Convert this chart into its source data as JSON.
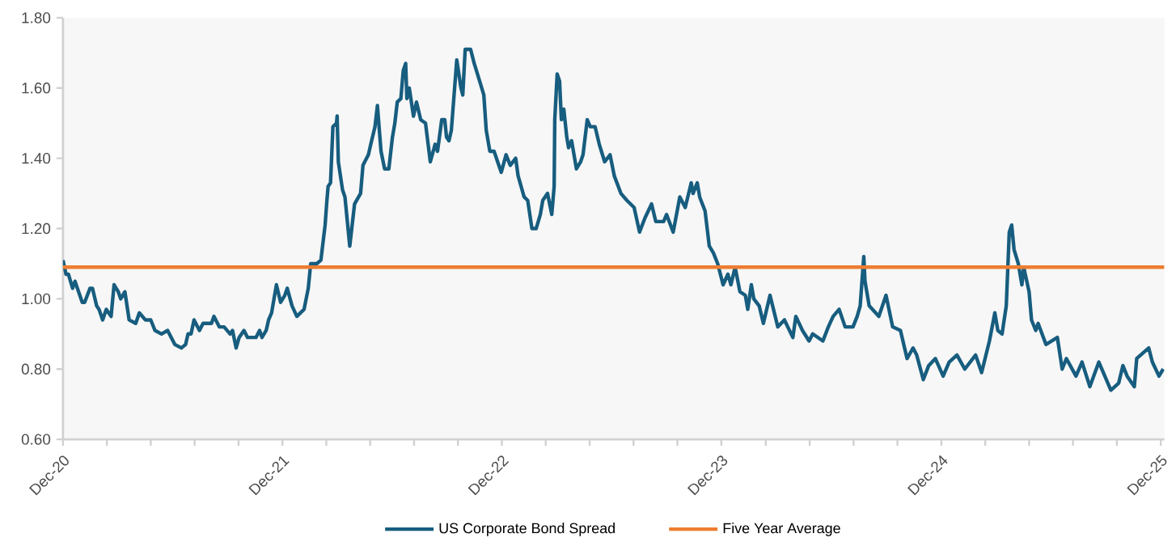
{
  "chart_data": {
    "type": "line",
    "xlim": [
      "2020-12-18",
      "2025-12-24"
    ],
    "ylim": [
      0.6,
      1.8
    ],
    "yticks": [
      {
        "value": 0.6,
        "label": "0.60"
      },
      {
        "value": 0.8,
        "label": "0.80"
      },
      {
        "value": 1.0,
        "label": "1.00"
      },
      {
        "value": 1.2,
        "label": "1.20"
      },
      {
        "value": 1.4,
        "label": "1.40"
      },
      {
        "value": 1.6,
        "label": "1.60"
      },
      {
        "value": 1.8,
        "label": "1.80"
      }
    ],
    "xticks": [
      {
        "value": "2020-12-18",
        "label": "Dec-20"
      },
      {
        "value": "2021-03-01",
        "label": null
      },
      {
        "value": "2021-05-13",
        "label": null
      },
      {
        "value": "2021-07-25",
        "label": null
      },
      {
        "value": "2021-10-06",
        "label": null
      },
      {
        "value": "2021-12-18",
        "label": "Dec-21"
      },
      {
        "value": "2022-03-01",
        "label": null
      },
      {
        "value": "2022-05-13",
        "label": null
      },
      {
        "value": "2022-07-25",
        "label": null
      },
      {
        "value": "2022-10-06",
        "label": null
      },
      {
        "value": "2022-12-18",
        "label": "Dec-22"
      },
      {
        "value": "2023-03-01",
        "label": null
      },
      {
        "value": "2023-05-13",
        "label": null
      },
      {
        "value": "2023-07-25",
        "label": null
      },
      {
        "value": "2023-10-06",
        "label": null
      },
      {
        "value": "2023-12-18",
        "label": "Dec-23"
      },
      {
        "value": "2024-03-01",
        "label": null
      },
      {
        "value": "2024-05-13",
        "label": null
      },
      {
        "value": "2024-07-25",
        "label": null
      },
      {
        "value": "2024-10-06",
        "label": null
      },
      {
        "value": "2024-12-18",
        "label": "Dec-24"
      },
      {
        "value": "2025-03-01",
        "label": null
      },
      {
        "value": "2025-05-13",
        "label": null
      },
      {
        "value": "2025-07-25",
        "label": null
      },
      {
        "value": "2025-10-06",
        "label": null
      },
      {
        "value": "2025-12-18",
        "label": "Dec-25"
      }
    ],
    "legend": "bottom",
    "ref_lines": [
      {
        "axis": "y",
        "value": 1.09,
        "label": "Five Year Average",
        "color": "#ed7d31"
      }
    ],
    "series": [
      {
        "name": "US Corporate Bond Spread",
        "color": "#175d7f",
        "x": [
          "2020-12-18",
          "2020-12-23",
          "2020-12-27",
          "2021-01-03",
          "2021-01-07",
          "2021-01-19",
          "2021-01-23",
          "2021-02-01",
          "2021-02-05",
          "2021-02-12",
          "2021-02-16",
          "2021-02-22",
          "2021-02-28",
          "2021-03-08",
          "2021-03-13",
          "2021-03-20",
          "2021-03-24",
          "2021-03-31",
          "2021-04-07",
          "2021-04-18",
          "2021-04-24",
          "2021-05-04",
          "2021-05-13",
          "2021-05-20",
          "2021-05-31",
          "2021-06-10",
          "2021-06-22",
          "2021-07-03",
          "2021-07-10",
          "2021-07-14",
          "2021-07-19",
          "2021-07-24",
          "2021-08-02",
          "2021-08-08",
          "2021-08-22",
          "2021-08-26",
          "2021-09-04",
          "2021-09-12",
          "2021-09-22",
          "2021-09-26",
          "2021-10-02",
          "2021-10-07",
          "2021-10-15",
          "2021-10-21",
          "2021-11-04",
          "2021-11-10",
          "2021-11-14",
          "2021-11-21",
          "2021-11-25",
          "2021-11-30",
          "2021-12-08",
          "2021-12-15",
          "2021-12-22",
          "2021-12-26",
          "2022-01-03",
          "2022-01-11",
          "2022-01-23",
          "2022-01-30",
          "2022-02-03",
          "2022-02-13",
          "2022-02-20",
          "2022-02-27",
          "2022-03-02",
          "2022-03-04",
          "2022-03-08",
          "2022-03-12",
          "2022-03-18",
          "2022-03-19",
          "2022-03-21",
          "2022-03-28",
          "2022-04-01",
          "2022-04-09",
          "2022-04-17",
          "2022-04-27",
          "2022-05-01",
          "2022-05-10",
          "2022-05-14",
          "2022-05-21",
          "2022-05-25",
          "2022-05-31",
          "2022-06-06",
          "2022-06-13",
          "2022-06-19",
          "2022-06-23",
          "2022-06-27",
          "2022-07-03",
          "2022-07-07",
          "2022-07-11",
          "2022-07-13",
          "2022-07-17",
          "2022-07-24",
          "2022-07-29",
          "2022-08-05",
          "2022-08-13",
          "2022-08-21",
          "2022-08-29",
          "2022-09-02",
          "2022-09-09",
          "2022-09-14",
          "2022-09-17",
          "2022-09-21",
          "2022-09-25",
          "2022-10-04",
          "2022-10-11",
          "2022-10-14",
          "2022-10-18",
          "2022-10-27",
          "2022-11-02",
          "2022-11-11",
          "2022-11-18",
          "2022-11-22",
          "2022-11-28",
          "2022-12-05",
          "2022-12-17",
          "2022-12-25",
          "2023-01-01",
          "2023-01-10",
          "2023-01-14",
          "2023-01-24",
          "2023-01-30",
          "2023-02-06",
          "2023-02-13",
          "2023-02-20",
          "2023-02-24",
          "2023-03-04",
          "2023-03-11",
          "2023-03-15",
          "2023-03-16",
          "2023-03-20",
          "2023-03-24",
          "2023-03-27",
          "2023-03-31",
          "2023-04-05",
          "2023-04-08",
          "2023-04-13",
          "2023-04-21",
          "2023-04-28",
          "2023-05-02",
          "2023-05-09",
          "2023-05-14",
          "2023-05-22",
          "2023-05-29",
          "2023-06-07",
          "2023-06-16",
          "2023-06-23",
          "2023-07-04",
          "2023-07-14",
          "2023-07-26",
          "2023-08-04",
          "2023-08-13",
          "2023-08-24",
          "2023-08-31",
          "2023-09-13",
          "2023-09-18",
          "2023-09-29",
          "2023-10-10",
          "2023-10-19",
          "2023-10-29",
          "2023-11-01",
          "2023-11-08",
          "2023-11-12",
          "2023-11-21",
          "2023-11-28",
          "2023-12-05",
          "2023-12-12",
          "2023-12-21",
          "2023-12-29",
          "2024-01-03",
          "2024-01-10",
          "2024-01-18",
          "2024-01-27",
          "2024-01-31",
          "2024-02-06",
          "2024-02-10",
          "2024-02-19",
          "2024-02-26",
          "2024-03-08",
          "2024-03-21",
          "2024-04-01",
          "2024-04-15",
          "2024-04-20",
          "2024-05-01",
          "2024-05-12",
          "2024-05-18",
          "2024-06-04",
          "2024-06-13",
          "2024-06-21",
          "2024-07-01",
          "2024-07-11",
          "2024-07-24",
          "2024-07-31",
          "2024-08-05",
          "2024-08-11",
          "2024-08-13",
          "2024-08-20",
          "2024-09-05",
          "2024-09-17",
          "2024-09-28",
          "2024-10-11",
          "2024-10-22",
          "2024-11-01",
          "2024-11-07",
          "2024-11-18",
          "2024-11-27",
          "2024-12-08",
          "2024-12-21",
          "2024-12-31",
          "2025-01-13",
          "2025-01-26",
          "2025-02-13",
          "2025-02-23",
          "2025-03-08",
          "2025-03-17",
          "2025-03-22",
          "2025-03-29",
          "2025-04-05",
          "2025-04-10",
          "2025-04-14",
          "2025-04-18",
          "2025-04-25",
          "2025-05-01",
          "2025-05-04",
          "2025-05-13",
          "2025-05-17",
          "2025-05-24",
          "2025-05-28",
          "2025-06-10",
          "2025-06-29",
          "2025-07-07",
          "2025-07-14",
          "2025-07-30",
          "2025-08-09",
          "2025-08-22",
          "2025-09-06",
          "2025-09-26",
          "2025-10-09",
          "2025-10-16",
          "2025-10-23",
          "2025-11-04",
          "2025-11-08",
          "2025-11-28",
          "2025-12-04",
          "2025-12-15",
          "2025-12-22"
        ],
        "values": [
          1.11,
          1.07,
          1.07,
          1.03,
          1.05,
          0.99,
          0.99,
          1.03,
          1.03,
          0.98,
          0.97,
          0.94,
          0.97,
          0.95,
          1.04,
          1.02,
          1.0,
          1.02,
          0.94,
          0.93,
          0.96,
          0.94,
          0.94,
          0.91,
          0.9,
          0.91,
          0.87,
          0.86,
          0.87,
          0.9,
          0.9,
          0.94,
          0.91,
          0.93,
          0.93,
          0.95,
          0.92,
          0.92,
          0.9,
          0.91,
          0.86,
          0.89,
          0.91,
          0.89,
          0.89,
          0.91,
          0.89,
          0.91,
          0.94,
          0.96,
          1.04,
          0.99,
          1.01,
          1.03,
          0.98,
          0.95,
          0.97,
          1.03,
          1.1,
          1.1,
          1.11,
          1.21,
          1.28,
          1.32,
          1.33,
          1.49,
          1.5,
          1.52,
          1.39,
          1.31,
          1.29,
          1.15,
          1.27,
          1.3,
          1.38,
          1.41,
          1.44,
          1.49,
          1.55,
          1.42,
          1.37,
          1.37,
          1.46,
          1.5,
          1.56,
          1.57,
          1.65,
          1.67,
          1.57,
          1.6,
          1.52,
          1.56,
          1.51,
          1.5,
          1.39,
          1.44,
          1.42,
          1.51,
          1.51,
          1.46,
          1.45,
          1.48,
          1.68,
          1.6,
          1.58,
          1.71,
          1.71,
          1.67,
          1.62,
          1.58,
          1.48,
          1.42,
          1.42,
          1.36,
          1.41,
          1.38,
          1.4,
          1.35,
          1.29,
          1.28,
          1.2,
          1.2,
          1.24,
          1.28,
          1.3,
          1.24,
          1.32,
          1.51,
          1.64,
          1.62,
          1.51,
          1.54,
          1.46,
          1.43,
          1.45,
          1.37,
          1.39,
          1.41,
          1.51,
          1.49,
          1.49,
          1.44,
          1.39,
          1.41,
          1.35,
          1.3,
          1.28,
          1.26,
          1.19,
          1.23,
          1.27,
          1.22,
          1.22,
          1.24,
          1.19,
          1.29,
          1.26,
          1.33,
          1.3,
          1.33,
          1.29,
          1.25,
          1.15,
          1.13,
          1.1,
          1.04,
          1.07,
          1.04,
          1.09,
          1.02,
          1.01,
          0.97,
          1.04,
          1.0,
          0.98,
          0.93,
          1.01,
          0.92,
          0.94,
          0.89,
          0.95,
          0.91,
          0.88,
          0.9,
          0.88,
          0.92,
          0.95,
          0.97,
          0.92,
          0.92,
          0.95,
          0.98,
          1.12,
          1.05,
          0.98,
          0.95,
          1.01,
          0.92,
          0.91,
          0.83,
          0.86,
          0.84,
          0.77,
          0.81,
          0.83,
          0.78,
          0.82,
          0.84,
          0.8,
          0.84,
          0.79,
          0.88,
          0.96,
          0.91,
          0.9,
          0.98,
          1.19,
          1.21,
          1.14,
          1.1,
          1.04,
          1.09,
          1.02,
          0.94,
          0.91,
          0.93,
          0.87,
          0.89,
          0.8,
          0.83,
          0.78,
          0.82,
          0.75,
          0.82,
          0.74,
          0.76,
          0.81,
          0.78,
          0.75,
          0.83,
          0.86,
          0.82,
          0.78,
          0.8
        ]
      }
    ]
  }
}
